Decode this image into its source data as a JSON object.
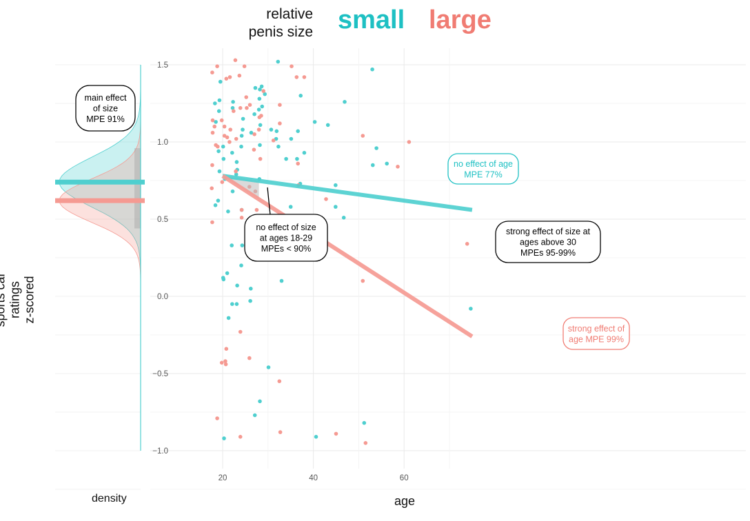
{
  "legend": {
    "title_line1": "relative",
    "title_line2": "penis size",
    "small_label": "small",
    "large_label": "large"
  },
  "axes": {
    "ylabel_line1": "sports car ratings",
    "ylabel_line2": "z-scored",
    "xlabel": "age",
    "density_label": "density"
  },
  "colors": {
    "small": "#4fcfcf",
    "large": "#f59a92",
    "small_text": "#1ec0c3",
    "large_text": "#f07c73"
  },
  "annotations": {
    "main_effect": [
      "main effect",
      "of size",
      "MPE 91%"
    ],
    "no_effect_young": [
      "no effect of size",
      "at ages 18-29",
      "MPEs < 90%"
    ],
    "strong_older": [
      "strong effect of size at",
      "ages above 30",
      "MPEs 95-99%"
    ],
    "age_small": [
      "no effect of age",
      "MPE 77%"
    ],
    "age_large": [
      "strong effect of",
      "age MPE 99%"
    ]
  },
  "chart_data": {
    "type": "scatter",
    "xlabel": "age",
    "ylabel": "sports car ratings z-scored",
    "xlim": [
      15,
      76
    ],
    "ylim": [
      -1.1,
      1.6
    ],
    "x_ticks": [
      20,
      40,
      60
    ],
    "y_ticks": [
      1.5,
      1.0,
      0.5,
      0.0,
      -0.5,
      -1.0
    ],
    "series": [
      {
        "name": "small",
        "points": [
          [
            19.2,
            1.2
          ],
          [
            18.3,
            1.25
          ],
          [
            18.5,
            1.13
          ],
          [
            19.3,
            1.27
          ],
          [
            19.5,
            1.39
          ],
          [
            19.1,
            0.94
          ],
          [
            19.3,
            0.81
          ],
          [
            19.0,
            0.62
          ],
          [
            18.4,
            0.59
          ],
          [
            20.1,
            0.97
          ],
          [
            20.2,
            0.89
          ],
          [
            20.5,
            0.76
          ],
          [
            21.2,
            0.55
          ],
          [
            21.0,
            0.15
          ],
          [
            20.1,
            0.12
          ],
          [
            20.2,
            0.11
          ],
          [
            21.3,
            -0.14
          ],
          [
            20.3,
            -0.92
          ],
          [
            22.2,
            1.22
          ],
          [
            22.3,
            1.26
          ],
          [
            22.1,
            0.93
          ],
          [
            22.2,
            0.68
          ],
          [
            22.0,
            0.33
          ],
          [
            22.1,
            -0.05
          ],
          [
            23.1,
            0.87
          ],
          [
            23.2,
            0.82
          ],
          [
            23.0,
            0.79
          ],
          [
            23.2,
            0.07
          ],
          [
            23.1,
            -0.05
          ],
          [
            24.2,
            1.04
          ],
          [
            24.1,
            0.97
          ],
          [
            24.2,
            0.56
          ],
          [
            24.3,
            0.33
          ],
          [
            24.1,
            0.2
          ],
          [
            24.4,
            1.08
          ],
          [
            24.5,
            1.15
          ],
          [
            26.3,
            1.06
          ],
          [
            26.2,
            0.05
          ],
          [
            26.1,
            -0.03
          ],
          [
            27.2,
            1.35
          ],
          [
            27.0,
            1.18
          ],
          [
            27.1,
            -0.77
          ],
          [
            28.2,
            1.34
          ],
          [
            28.1,
            1.28
          ],
          [
            28.0,
            1.21
          ],
          [
            28.3,
            1.11
          ],
          [
            28.2,
            0.98
          ],
          [
            28.1,
            0.76
          ],
          [
            28.2,
            -0.68
          ],
          [
            28.6,
            1.36
          ],
          [
            28.7,
            1.23
          ],
          [
            29.3,
            1.31
          ],
          [
            30.7,
            1.08
          ],
          [
            31.9,
            1.07
          ],
          [
            32.2,
            1.52
          ],
          [
            31.8,
            1.02
          ],
          [
            32.3,
            0.97
          ],
          [
            33.0,
            0.1
          ],
          [
            34.0,
            0.89
          ],
          [
            35.1,
            1.02
          ],
          [
            35.0,
            0.58
          ],
          [
            34.9,
            0.44
          ],
          [
            36.6,
            1.07
          ],
          [
            36.4,
            0.89
          ],
          [
            37.2,
            1.3
          ],
          [
            37.1,
            0.73
          ],
          [
            38.0,
            0.93
          ],
          [
            39.3,
            0.4
          ],
          [
            40.3,
            1.13
          ],
          [
            40.6,
            -0.91
          ],
          [
            43.2,
            1.11
          ],
          [
            44.9,
            0.72
          ],
          [
            44.9,
            0.58
          ],
          [
            46.9,
            1.26
          ],
          [
            46.7,
            0.51
          ],
          [
            51.2,
            -0.82
          ],
          [
            53.0,
            1.47
          ],
          [
            53.9,
            0.96
          ],
          [
            53.1,
            0.85
          ],
          [
            56.2,
            0.86
          ],
          [
            74.7,
            -0.08
          ],
          [
            30.1,
            -0.46
          ]
        ]
      },
      {
        "name": "large",
        "points": [
          [
            17.7,
            1.45
          ],
          [
            18.8,
            1.49
          ],
          [
            18.2,
            1.1
          ],
          [
            17.8,
            1.14
          ],
          [
            17.8,
            1.06
          ],
          [
            17.7,
            0.85
          ],
          [
            17.6,
            0.7
          ],
          [
            17.7,
            0.48
          ],
          [
            18.5,
            0.98
          ],
          [
            18.9,
            0.97
          ],
          [
            19.8,
            1.14
          ],
          [
            19.9,
            0.74
          ],
          [
            19.8,
            -0.43
          ],
          [
            18.8,
            -0.79
          ],
          [
            20.8,
            1.41
          ],
          [
            20.4,
            1.1
          ],
          [
            20.4,
            1.04
          ],
          [
            21.0,
            1.03
          ],
          [
            21.6,
            1.42
          ],
          [
            21.7,
            1.08
          ],
          [
            21.5,
            1.0
          ],
          [
            20.8,
            -0.34
          ],
          [
            20.6,
            -0.42
          ],
          [
            20.7,
            -0.44
          ],
          [
            22.4,
            1.2
          ],
          [
            22.8,
            1.53
          ],
          [
            23.0,
            1.02
          ],
          [
            22.9,
            0.81
          ],
          [
            23.7,
            1.43
          ],
          [
            23.9,
            1.22
          ],
          [
            24.2,
            0.56
          ],
          [
            24.2,
            0.51
          ],
          [
            23.9,
            -0.23
          ],
          [
            23.9,
            -0.91
          ],
          [
            25.2,
            1.29
          ],
          [
            25.3,
            1.22
          ],
          [
            24.8,
            1.49
          ],
          [
            26.0,
            1.24
          ],
          [
            25.9,
            0.71
          ],
          [
            25.9,
            -0.4
          ],
          [
            27.0,
            1.05
          ],
          [
            26.9,
            0.95
          ],
          [
            27.2,
            0.68
          ],
          [
            27.5,
            0.56
          ],
          [
            28.1,
            1.16
          ],
          [
            28.0,
            1.08
          ],
          [
            28.5,
            1.17
          ],
          [
            28.3,
            0.89
          ],
          [
            29.0,
            1.33
          ],
          [
            29.5,
            0.35
          ],
          [
            31.2,
            1.01
          ],
          [
            32.6,
            1.24
          ],
          [
            32.6,
            1.12
          ],
          [
            32.5,
            0.42
          ],
          [
            32.5,
            -0.55
          ],
          [
            32.7,
            -0.88
          ],
          [
            35.2,
            1.49
          ],
          [
            36.3,
            1.42
          ],
          [
            36.6,
            0.86
          ],
          [
            36.7,
            0.72
          ],
          [
            38.0,
            1.42
          ],
          [
            39.1,
            0.38
          ],
          [
            38.2,
            0.36
          ],
          [
            39.9,
            0.29
          ],
          [
            42.8,
            0.63
          ],
          [
            45.0,
            -0.89
          ],
          [
            50.9,
            1.04
          ],
          [
            50.9,
            0.1
          ],
          [
            51.5,
            -0.95
          ],
          [
            58.6,
            0.84
          ],
          [
            61.1,
            1.0
          ],
          [
            73.9,
            0.34
          ]
        ]
      }
    ],
    "trend_lines": [
      {
        "name": "small",
        "x": [
          20,
          75
        ],
        "y": [
          0.78,
          0.56
        ]
      },
      {
        "name": "large",
        "x": [
          20,
          75
        ],
        "y": [
          0.78,
          -0.26
        ]
      }
    ],
    "density": {
      "small_mean": 0.74,
      "large_mean": 0.62
    },
    "grid": true
  }
}
